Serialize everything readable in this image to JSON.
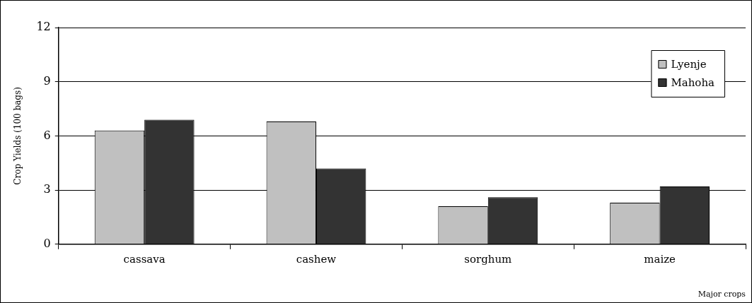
{
  "chart_data": {
    "type": "bar",
    "xlabel": "Major crops",
    "ylabel": "Crop Yields (100 bags)",
    "categories": [
      "cassava",
      "cashew",
      "sorghum",
      "maize"
    ],
    "series": [
      {
        "name": "Lyenje",
        "color": "#c0c0c0",
        "values": [
          6.3,
          6.8,
          2.1,
          2.3
        ]
      },
      {
        "name": "Mahoha",
        "color": "#333333",
        "values": [
          6.9,
          4.2,
          2.6,
          3.2
        ]
      }
    ],
    "ylim": [
      0,
      12
    ],
    "yticks": [
      0,
      3,
      6,
      9,
      12
    ],
    "grid": "y",
    "legend": "top right"
  }
}
